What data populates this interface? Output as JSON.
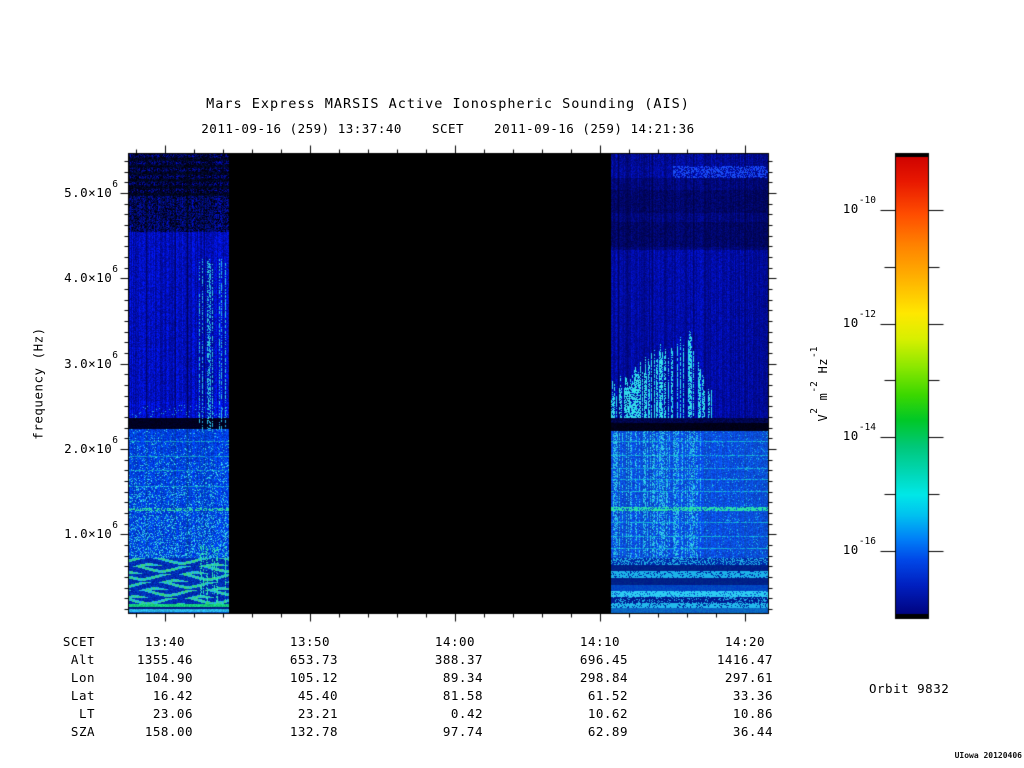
{
  "header": {
    "title": "Mars Express MARSIS Active Ionospheric Sounding (AIS)",
    "scet_start": "2011-09-16 (259) 13:37:40",
    "scet_label": "SCET",
    "scet_end": "2011-09-16 (259) 14:21:36"
  },
  "chart_data": {
    "type": "heatmap",
    "subtype": "radar-spectrogram",
    "title": "Mars Express MARSIS Active Ionospheric Sounding (AIS)",
    "xlabel": "SCET",
    "ylabel": "frequency (Hz)",
    "x_ticks": [
      "13:40",
      "13:50",
      "14:00",
      "14:10",
      "14:20"
    ],
    "x_minor_interval_minutes": 2,
    "time_range": [
      "13:37:40",
      "14:21:36"
    ],
    "y_range_hz": [
      80000,
      5470000
    ],
    "y_ticks": [
      {
        "m": "5.0×10",
        "e": "6",
        "v": 5.0
      },
      {
        "m": "4.0×10",
        "e": "6",
        "v": 4.0
      },
      {
        "m": "3.0×10",
        "e": "6",
        "v": 3.0
      },
      {
        "m": "2.0×10",
        "e": "6",
        "v": 2.0
      },
      {
        "m": "1.0×10",
        "e": "6",
        "v": 1.0
      }
    ],
    "y_minor_interval_mhz": 0.125,
    "data_segments": [
      {
        "start": "13:37:40",
        "end": "13:44:30"
      },
      {
        "start": "14:10:45",
        "end": "14:21:36"
      }
    ],
    "data_gap": {
      "start": "13:44:30",
      "end": "14:10:45",
      "appearance": "black, no data"
    },
    "features": [
      "blue vertical striation noise across both data segments",
      "dark speckled band above ~4.7 MHz in left segment",
      "narrow absorption gap (near-black horizontal band) at ~2.3 MHz in both segments",
      "brighter cyan speckle below 2.3 MHz",
      "green/cyan wavy interference bands below ~0.6 MHz in left segment",
      "cyan ionospheric echo streaks ~2.4-3.4 MHz rising 14:11-14:17 in right segment",
      "bright cyan-green plasma line at ~1.2 MHz",
      "horizontal banded interference rows below ~0.6 MHz in right segment",
      "bright blue dashed band near 5.3 MHz at top of right segment"
    ],
    "colorbar": {
      "unit_segments": [
        {
          "t": "V"
        },
        {
          "t": "2",
          "sup": true
        },
        {
          "t": " m"
        },
        {
          "t": "-2",
          "sup": true
        },
        {
          "t": " Hz"
        },
        {
          "t": "-1",
          "sup": true
        }
      ],
      "ticks": [
        {
          "m": "10",
          "e": "-10",
          "v": -10
        },
        {
          "m": "10",
          "e": "-12",
          "v": -12
        },
        {
          "m": "10",
          "e": "-14",
          "v": -14
        },
        {
          "m": "10",
          "e": "-16",
          "v": -16
        }
      ],
      "minor_ticks": [
        -11,
        -13,
        -15
      ],
      "gradient": [
        [
          0.0,
          "#cc0000"
        ],
        [
          0.06,
          "#e81800"
        ],
        [
          0.13,
          "#ff4c00"
        ],
        [
          0.2,
          "#ff8400"
        ],
        [
          0.28,
          "#ffb900"
        ],
        [
          0.345,
          "#ffe800"
        ],
        [
          0.4,
          "#d8f000"
        ],
        [
          0.46,
          "#8ce800"
        ],
        [
          0.52,
          "#3cd800"
        ],
        [
          0.575,
          "#00c828"
        ],
        [
          0.63,
          "#00c878"
        ],
        [
          0.69,
          "#00d8b8"
        ],
        [
          0.735,
          "#00e8e8"
        ],
        [
          0.78,
          "#00c0f0"
        ],
        [
          0.83,
          "#0080f8"
        ],
        [
          0.875,
          "#0048e8"
        ],
        [
          0.93,
          "#0020c0"
        ],
        [
          1.0,
          "#000078"
        ]
      ]
    }
  },
  "ephemeris": {
    "rows": [
      {
        "label": "SCET",
        "values": [
          "13:40",
          "13:50",
          "14:00",
          "14:10",
          "14:20"
        ]
      },
      {
        "label": "Alt",
        "values": [
          "1355.46",
          "653.73",
          "388.37",
          "696.45",
          "1416.47"
        ]
      },
      {
        "label": "Lon",
        "values": [
          "104.90",
          "105.12",
          "89.34",
          "298.84",
          "297.61"
        ]
      },
      {
        "label": "Lat",
        "values": [
          "16.42",
          "45.40",
          "81.58",
          "61.52",
          "33.36"
        ]
      },
      {
        "label": "LT",
        "values": [
          "23.06",
          "23.21",
          "0.42",
          "10.62",
          "10.86"
        ]
      },
      {
        "label": "SZA",
        "values": [
          "158.00",
          "132.78",
          "97.74",
          "62.89",
          "36.44"
        ]
      }
    ]
  },
  "orbit_label": "Orbit 9832",
  "stamp": "UIowa 20120406"
}
